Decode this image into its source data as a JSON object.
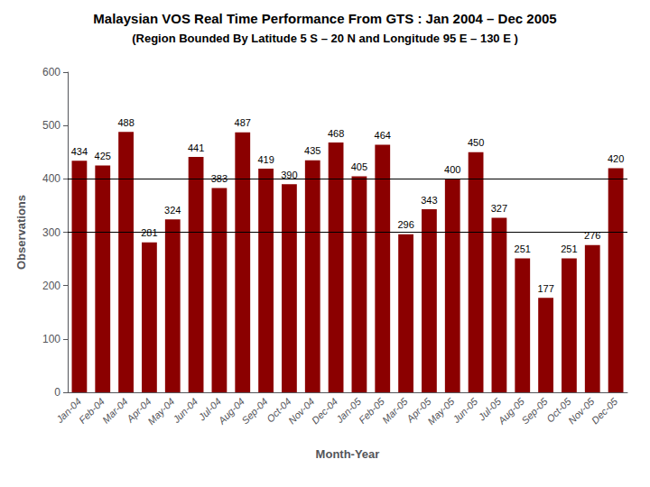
{
  "chart_data": {
    "type": "bar",
    "title": "Malaysian VOS Real Time Performance From GTS : Jan 2004 – Dec 2005",
    "subtitle": "(Region Bounded By Latitude 5 S – 20 N and Longitude 95 E – 130 E )",
    "categories": [
      "Jan-04",
      "Feb-04",
      "Mar-04",
      "Apr-04",
      "May-04",
      "Jun-04",
      "Jul-04",
      "Aug-04",
      "Sep-04",
      "Oct-04",
      "Nov-04",
      "Dec-04",
      "Jan-05",
      "Feb-05",
      "Mar-05",
      "Apr-05",
      "May-05",
      "Jun-05",
      "Jul-05",
      "Aug-05",
      "Sep-05",
      "Oct-05",
      "Nov-05",
      "Dec-05"
    ],
    "values": [
      434,
      425,
      488,
      281,
      324,
      441,
      383,
      487,
      419,
      390,
      435,
      468,
      405,
      464,
      296,
      343,
      400,
      450,
      327,
      251,
      177,
      251,
      276,
      420
    ],
    "color": "#8B0000",
    "xlabel": "Month-Year",
    "ylabel": "Observations",
    "ylim": [
      0,
      600
    ],
    "yticks": [
      0,
      100,
      200,
      300,
      400,
      500,
      600
    ],
    "hlines": [
      300,
      400
    ],
    "grid": false,
    "data_labels": true
  }
}
